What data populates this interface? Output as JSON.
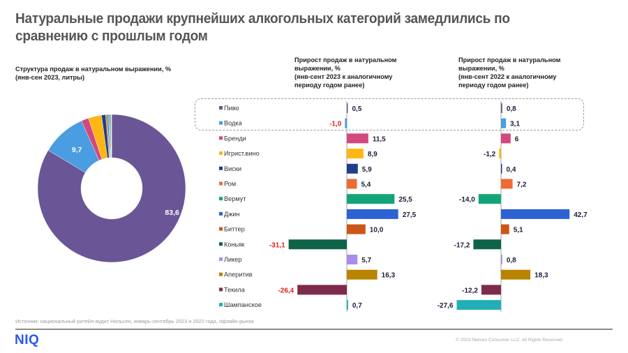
{
  "title": "Натуральные продажи крупнейших алкогольных категорий замедлились по сравнению с прошлым годом",
  "footer": {
    "source": "Источник: национальный ритейл-аудит Нильсен, январь-сентябрь 2023 и 2022 года, офлайн-рынок",
    "logo": "NIQ",
    "copyright": "© 2023 Nielsen Consumer LLC. All Rights Reserved."
  },
  "chart_data": [
    {
      "type": "pie",
      "variant": "donut",
      "title": "Структура продаж в натуральном выражении, % (янв-сен 2023, литры)",
      "labels": [
        "Пиво",
        "Водка",
        "Бренди",
        "Игрист.вино",
        "Виски",
        "Ром",
        "Вермут",
        "Джин",
        "Биттер",
        "Коньяк",
        "Ликер",
        "Аперитив",
        "Текила",
        "Шампанское"
      ],
      "values": [
        83.6,
        9.7,
        1.6,
        2.9,
        0.9,
        0.3,
        0.3,
        0.2,
        0.1,
        0.2,
        0.1,
        0.05,
        0.03,
        0.02
      ],
      "data_labels": {
        "Пиво": "83,6",
        "Водка": "9,7"
      },
      "colors": [
        "#6a5596",
        "#4a9de0",
        "#d2487f",
        "#fcb714",
        "#1f3f88",
        "#ee6b32",
        "#13a579",
        "#2d62d4",
        "#cc5617",
        "#0e6348",
        "#a98ded",
        "#b88400",
        "#7e2b4b",
        "#22aeb6"
      ]
    },
    {
      "type": "bar",
      "orientation": "horizontal",
      "title": "Прирост продаж в натуральном выражении, % (янв-сент 2023 к аналогичному периоду годом ранее)",
      "categories": [
        "Пиво",
        "Водка",
        "Бренди",
        "Игрист.вино",
        "Виски",
        "Ром",
        "Вермут",
        "Джин",
        "Биттер",
        "Коньяк",
        "Ликер",
        "Аперитив",
        "Текила",
        "Шампанское"
      ],
      "values": [
        0.5,
        -1.0,
        11.5,
        8.9,
        5.9,
        5.4,
        25.5,
        27.5,
        10.0,
        -31.1,
        5.7,
        16.3,
        -26.4,
        0.7
      ],
      "value_labels": [
        "0,5",
        "-1,0",
        "11,5",
        "8,9",
        "5,9",
        "5,4",
        "25,5",
        "27,5",
        "10,0",
        "-31,1",
        "5,7",
        "16,3",
        "-26,4",
        "0,7"
      ],
      "negative_label_color": "#e0201b",
      "positive_label_color": "#1c1c3c"
    },
    {
      "type": "bar",
      "orientation": "horizontal",
      "title": "Прирост продаж в натуральном выражении, % (янв-сент 2022 к аналогичному периоду годом ранее)",
      "categories": [
        "Пиво",
        "Водка",
        "Бренди",
        "Игрист.вино",
        "Виски",
        "Ром",
        "Вермут",
        "Джин",
        "Биттер",
        "Коньяк",
        "Ликер",
        "Аперитив",
        "Текила",
        "Шампанское"
      ],
      "values": [
        0.8,
        3.1,
        6,
        -1.2,
        0.4,
        7.2,
        -14.0,
        42.7,
        5.1,
        -17.2,
        0.8,
        18.3,
        -12.2,
        -27.6
      ],
      "value_labels": [
        "0,8",
        "3,1",
        "6",
        "-1,2",
        "0,4",
        "7,2",
        "-14,0",
        "42,7",
        "5,1",
        "-17,2",
        "0,8",
        "18,3",
        "-12,2",
        "-27,6"
      ],
      "label_color": "#1c1c3c"
    }
  ],
  "highlight": {
    "categories": [
      "Пиво",
      "Водка"
    ],
    "style": "dashed-box"
  },
  "subtitles": {
    "donut": "Структура продаж в натуральном выражении, %\n(янв-сен 2023, литры)",
    "growth_2023": "Прирост продаж в натуральном\nвыражении, %\n(янв-сент 2023 к аналогичному\nпериоду годом ранее)",
    "growth_2022": "Прирост продаж в натуральном\nвыражении, %\n(янв-сент 2022 к аналогичному\nпериоду годом ранее)"
  }
}
